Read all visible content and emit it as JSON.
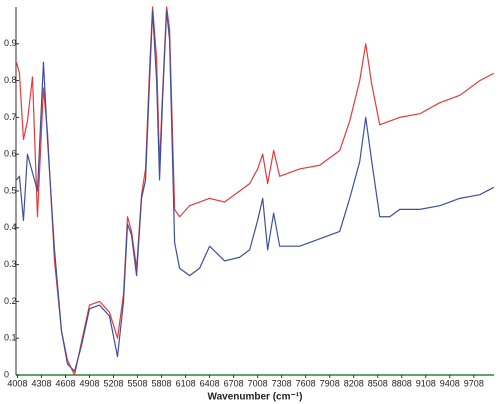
{
  "chart_data": {
    "type": "line",
    "x_label": "Wavenumber (cm⁻¹)",
    "x": [
      3996,
      4033,
      4083,
      4133,
      4196,
      4258,
      4333,
      4383,
      4471,
      4558,
      4633,
      4721,
      4808,
      4908,
      5033,
      5158,
      5258,
      5333,
      5383,
      5433,
      5496,
      5558,
      5608,
      5658,
      5696,
      5746,
      5783,
      5821,
      5871,
      5908,
      5971,
      6033,
      6158,
      6283,
      6408,
      6596,
      6783,
      6908,
      7008,
      7071,
      7133,
      7208,
      7283,
      7533,
      7783,
      8033,
      8158,
      8283,
      8358,
      8433,
      8533,
      8658,
      8783,
      9033,
      9283,
      9533,
      9783,
      9958
    ],
    "series": [
      {
        "color": "#e03c3c",
        "values": [
          0.85,
          0.82,
          0.64,
          0.69,
          0.81,
          0.43,
          0.78,
          0.66,
          0.31,
          0.12,
          0.04,
          0.0,
          0.09,
          0.19,
          0.2,
          0.17,
          0.1,
          0.22,
          0.43,
          0.39,
          0.29,
          0.49,
          0.56,
          0.83,
          1.0,
          0.86,
          0.57,
          0.77,
          1.0,
          0.94,
          0.45,
          0.43,
          0.46,
          0.47,
          0.48,
          0.47,
          0.5,
          0.52,
          0.56,
          0.6,
          0.52,
          0.61,
          0.54,
          0.56,
          0.57,
          0.61,
          0.69,
          0.8,
          0.9,
          0.79,
          0.68,
          0.69,
          0.7,
          0.71,
          0.74,
          0.76,
          0.8,
          0.82
        ]
      },
      {
        "color": "#3f4f9a",
        "values": [
          0.53,
          0.54,
          0.42,
          0.6,
          0.55,
          0.5,
          0.85,
          0.64,
          0.34,
          0.12,
          0.03,
          0.01,
          0.08,
          0.18,
          0.19,
          0.16,
          0.05,
          0.2,
          0.41,
          0.38,
          0.27,
          0.48,
          0.53,
          0.8,
          0.99,
          0.8,
          0.53,
          0.75,
          0.99,
          0.91,
          0.36,
          0.29,
          0.27,
          0.29,
          0.35,
          0.31,
          0.32,
          0.34,
          0.42,
          0.48,
          0.34,
          0.44,
          0.35,
          0.35,
          0.37,
          0.39,
          0.48,
          0.58,
          0.7,
          0.58,
          0.43,
          0.43,
          0.45,
          0.45,
          0.46,
          0.48,
          0.49,
          0.51
        ]
      }
    ],
    "xlim": [
      3990,
      9960
    ],
    "xticks": [
      4008,
      4308,
      4608,
      4908,
      5208,
      5508,
      5808,
      6108,
      6408,
      6708,
      7008,
      7308,
      7608,
      7908,
      8208,
      8508,
      8808,
      9108,
      9408,
      9708
    ],
    "ylim": [
      0,
      1.0
    ],
    "yticks": [
      0,
      0.1,
      0.2,
      0.3,
      0.4,
      0.5,
      0.6,
      0.7,
      0.8,
      0.9
    ],
    "grid": false
  }
}
